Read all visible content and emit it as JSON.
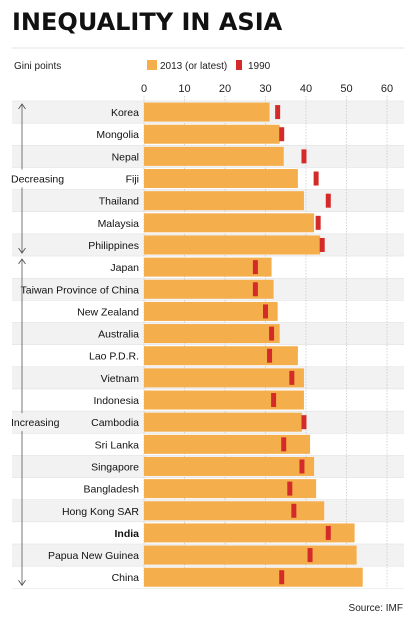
{
  "header": {
    "title": "INEQUALITY IN ASIA"
  },
  "footer": {
    "source": "Source: IMF"
  },
  "chart_data": {
    "type": "bar",
    "orientation": "horizontal",
    "title": "INEQUALITY IN ASIA",
    "unit_label": "Gini points",
    "xlim": [
      0,
      60
    ],
    "ticks": [
      0,
      10,
      20,
      30,
      40,
      50,
      60
    ],
    "legend": {
      "placement": "top",
      "entries": [
        "2013 (or latest)",
        "1990"
      ]
    },
    "colors": {
      "bar_2013": "#F5AE4C",
      "marker_1990": "#D52A2A",
      "row_alt": "#F2F2F2",
      "group_line": "#555555"
    },
    "groups": [
      {
        "label": "Decreasing",
        "countries": [
          "Korea",
          "Mongolia",
          "Nepal",
          "Fiji",
          "Thailand",
          "Malaysia",
          "Philippines"
        ]
      },
      {
        "label": "Increasing",
        "countries": [
          "Japan",
          "Taiwan Province of China",
          "New Zealand",
          "Australia",
          "Lao P.D.R.",
          "Vietnam",
          "Indonesia",
          "Cambodia",
          "Sri Lanka",
          "Singapore",
          "Bangladesh",
          "Hong Kong SAR",
          "India",
          "Papua New Guinea",
          "China"
        ]
      }
    ],
    "categories": [
      "Korea",
      "Mongolia",
      "Nepal",
      "Fiji",
      "Thailand",
      "Malaysia",
      "Philippines",
      "Japan",
      "Taiwan Province of China",
      "New Zealand",
      "Australia",
      "Lao P.D.R.",
      "Vietnam",
      "Indonesia",
      "Cambodia",
      "Sri Lanka",
      "Singapore",
      "Bangladesh",
      "Hong Kong SAR",
      "India",
      "Papua New Guinea",
      "China"
    ],
    "highlight": [
      "India"
    ],
    "series": [
      {
        "name": "2013 (or latest)",
        "values": [
          31,
          33.5,
          34.5,
          38,
          39.5,
          42,
          43.5,
          31.5,
          32,
          33,
          33.5,
          38,
          39.5,
          39.5,
          39,
          41,
          42,
          42.5,
          44.5,
          52,
          52.5,
          54
        ]
      },
      {
        "name": "1990",
        "values": [
          33,
          34,
          39.5,
          42.5,
          45.5,
          43,
          44,
          27.5,
          27.5,
          30,
          31.5,
          31,
          36.5,
          32,
          39.5,
          34.5,
          39,
          36,
          37,
          45.5,
          41,
          34
        ]
      }
    ]
  }
}
